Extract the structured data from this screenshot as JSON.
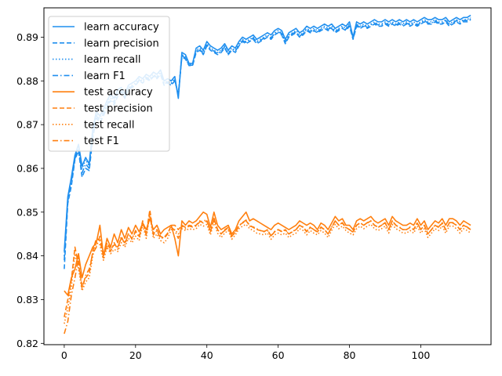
{
  "chart_data": {
    "type": "line",
    "title": "",
    "xlabel": "",
    "ylabel": "",
    "xlim": [
      -5.7,
      119.7
    ],
    "ylim": [
      0.8197,
      0.8967
    ],
    "xticks": [
      0,
      20,
      40,
      60,
      80,
      100
    ],
    "yticks": [
      0.82,
      0.83,
      0.84,
      0.85,
      0.86,
      0.87,
      0.88,
      0.89
    ],
    "grid": false,
    "legend_position": "top-left",
    "colors": {
      "learn": "#1f8fef",
      "test": "#ff7f0e"
    },
    "series_styles": {
      "learn accuracy": "solid",
      "learn precision": "dashed",
      "learn recall": "dotted",
      "learn F1": "dashdot",
      "test accuracy": "solid",
      "test precision": "dashed",
      "test recall": "dotted",
      "test F1": "dashdot"
    },
    "x": [
      0,
      1,
      2,
      3,
      4,
      5,
      6,
      7,
      8,
      9,
      10,
      11,
      12,
      13,
      14,
      15,
      16,
      17,
      18,
      19,
      20,
      21,
      22,
      23,
      24,
      25,
      26,
      27,
      28,
      29,
      30,
      31,
      32,
      33,
      34,
      35,
      36,
      37,
      38,
      39,
      40,
      41,
      42,
      43,
      44,
      45,
      46,
      47,
      48,
      49,
      50,
      51,
      52,
      53,
      54,
      55,
      56,
      57,
      58,
      59,
      60,
      61,
      62,
      63,
      64,
      65,
      66,
      67,
      68,
      69,
      70,
      71,
      72,
      73,
      74,
      75,
      76,
      77,
      78,
      79,
      80,
      81,
      82,
      83,
      84,
      85,
      86,
      87,
      88,
      89,
      90,
      91,
      92,
      93,
      94,
      95,
      96,
      97,
      98,
      99,
      100,
      101,
      102,
      103,
      104,
      105,
      106,
      107,
      108,
      109,
      110,
      111,
      112,
      113,
      114
    ],
    "series": [
      {
        "name": "learn accuracy",
        "values": [
          0.841,
          0.8535,
          0.858,
          0.863,
          0.8655,
          0.8605,
          0.8625,
          0.861,
          0.869,
          0.873,
          0.872,
          0.8735,
          0.8755,
          0.877,
          0.876,
          0.878,
          0.8785,
          0.877,
          0.879,
          0.8795,
          0.88,
          0.881,
          0.8805,
          0.8815,
          0.881,
          0.882,
          0.8815,
          0.8825,
          0.88,
          0.8805,
          0.88,
          0.881,
          0.876,
          0.8865,
          0.886,
          0.884,
          0.884,
          0.8875,
          0.888,
          0.887,
          0.889,
          0.888,
          0.8875,
          0.887,
          0.8875,
          0.8885,
          0.887,
          0.888,
          0.8875,
          0.889,
          0.89,
          0.8895,
          0.89,
          0.8905,
          0.8895,
          0.89,
          0.8905,
          0.891,
          0.8905,
          0.8915,
          0.892,
          0.8915,
          0.8895,
          0.891,
          0.8915,
          0.892,
          0.891,
          0.8915,
          0.8925,
          0.892,
          0.8925,
          0.892,
          0.8925,
          0.893,
          0.8925,
          0.893,
          0.892,
          0.8925,
          0.893,
          0.8925,
          0.8935,
          0.89,
          0.8935,
          0.893,
          0.8935,
          0.893,
          0.8935,
          0.894,
          0.8935,
          0.8935,
          0.894,
          0.8935,
          0.894,
          0.8935,
          0.894,
          0.8935,
          0.894,
          0.8935,
          0.894,
          0.8935,
          0.894,
          0.8945,
          0.894,
          0.894,
          0.8945,
          0.894,
          0.894,
          0.8945,
          0.8935,
          0.894,
          0.8945,
          0.894,
          0.8945,
          0.8945,
          0.895
        ]
      },
      {
        "name": "learn precision",
        "values": [
          0.837,
          0.852,
          0.856,
          0.862,
          0.864,
          0.858,
          0.86,
          0.8595,
          0.867,
          0.8715,
          0.8705,
          0.872,
          0.874,
          0.8755,
          0.8745,
          0.8765,
          0.8775,
          0.876,
          0.878,
          0.8785,
          0.879,
          0.88,
          0.8795,
          0.8805,
          0.88,
          0.881,
          0.8805,
          0.8815,
          0.879,
          0.8795,
          0.879,
          0.88,
          0.877,
          0.8855,
          0.885,
          0.8835,
          0.8835,
          0.8865,
          0.887,
          0.886,
          0.888,
          0.887,
          0.8865,
          0.886,
          0.8865,
          0.8875,
          0.886,
          0.887,
          0.8865,
          0.888,
          0.889,
          0.8885,
          0.889,
          0.8895,
          0.8885,
          0.889,
          0.8895,
          0.89,
          0.8895,
          0.8905,
          0.891,
          0.8905,
          0.8885,
          0.89,
          0.8905,
          0.891,
          0.89,
          0.8905,
          0.8915,
          0.891,
          0.8915,
          0.891,
          0.8915,
          0.892,
          0.8915,
          0.892,
          0.891,
          0.8915,
          0.892,
          0.8915,
          0.8925,
          0.8895,
          0.8925,
          0.892,
          0.8925,
          0.892,
          0.8925,
          0.893,
          0.8925,
          0.8925,
          0.893,
          0.8925,
          0.893,
          0.8925,
          0.893,
          0.8925,
          0.893,
          0.8925,
          0.893,
          0.8925,
          0.893,
          0.8935,
          0.893,
          0.893,
          0.8935,
          0.893,
          0.893,
          0.8935,
          0.8925,
          0.893,
          0.8935,
          0.893,
          0.8935,
          0.8935,
          0.894
        ]
      },
      {
        "name": "learn recall",
        "values": [
          0.84,
          0.853,
          0.8575,
          0.8625,
          0.865,
          0.86,
          0.862,
          0.8605,
          0.8685,
          0.8725,
          0.8715,
          0.873,
          0.875,
          0.8765,
          0.8755,
          0.8775,
          0.878,
          0.8765,
          0.8785,
          0.879,
          0.8795,
          0.8805,
          0.88,
          0.881,
          0.8805,
          0.8815,
          0.881,
          0.882,
          0.8795,
          0.88,
          0.8795,
          0.8805,
          0.8765,
          0.886,
          0.8855,
          0.8838,
          0.8838,
          0.887,
          0.8875,
          0.8865,
          0.8885,
          0.8875,
          0.887,
          0.8865,
          0.887,
          0.888,
          0.8865,
          0.8875,
          0.887,
          0.8885,
          0.8895,
          0.889,
          0.8895,
          0.89,
          0.889,
          0.8895,
          0.89,
          0.8905,
          0.89,
          0.891,
          0.8915,
          0.891,
          0.889,
          0.8905,
          0.891,
          0.8915,
          0.8905,
          0.891,
          0.892,
          0.8915,
          0.892,
          0.8915,
          0.892,
          0.8925,
          0.892,
          0.8925,
          0.8915,
          0.892,
          0.8925,
          0.892,
          0.893,
          0.8898,
          0.893,
          0.8925,
          0.893,
          0.8925,
          0.893,
          0.8935,
          0.893,
          0.893,
          0.8935,
          0.893,
          0.8935,
          0.893,
          0.8935,
          0.893,
          0.8935,
          0.893,
          0.8935,
          0.893,
          0.8935,
          0.894,
          0.8935,
          0.8935,
          0.894,
          0.8935,
          0.8935,
          0.894,
          0.893,
          0.8935,
          0.894,
          0.8935,
          0.894,
          0.894,
          0.8945
        ]
      },
      {
        "name": "learn F1",
        "values": [
          0.839,
          0.8525,
          0.857,
          0.8622,
          0.8645,
          0.859,
          0.861,
          0.86,
          0.8678,
          0.872,
          0.871,
          0.8725,
          0.8745,
          0.876,
          0.875,
          0.877,
          0.8778,
          0.8762,
          0.8782,
          0.8788,
          0.8792,
          0.8802,
          0.8798,
          0.8808,
          0.8802,
          0.8812,
          0.8808,
          0.8818,
          0.8792,
          0.8798,
          0.8792,
          0.8802,
          0.8768,
          0.8858,
          0.8852,
          0.8836,
          0.8836,
          0.8868,
          0.8872,
          0.8862,
          0.8882,
          0.8872,
          0.8868,
          0.8862,
          0.8868,
          0.8878,
          0.8862,
          0.8872,
          0.8868,
          0.8882,
          0.8892,
          0.8888,
          0.8892,
          0.8898,
          0.8888,
          0.8892,
          0.8898,
          0.8902,
          0.8898,
          0.8908,
          0.8912,
          0.8908,
          0.8888,
          0.8902,
          0.8908,
          0.8912,
          0.8902,
          0.8908,
          0.8918,
          0.8912,
          0.8918,
          0.8912,
          0.8918,
          0.8922,
          0.8918,
          0.8922,
          0.8912,
          0.8918,
          0.8922,
          0.8918,
          0.8928,
          0.8896,
          0.8928,
          0.8922,
          0.8928,
          0.8922,
          0.8928,
          0.8932,
          0.8928,
          0.8928,
          0.8932,
          0.8928,
          0.8932,
          0.8928,
          0.8932,
          0.8928,
          0.8932,
          0.8928,
          0.8932,
          0.8928,
          0.8932,
          0.8938,
          0.8932,
          0.8932,
          0.8938,
          0.8932,
          0.8932,
          0.8938,
          0.8928,
          0.8932,
          0.8938,
          0.8932,
          0.8938,
          0.8938,
          0.8942
        ]
      },
      {
        "name": "test accuracy",
        "values": [
          0.832,
          0.831,
          0.835,
          0.837,
          0.8405,
          0.835,
          0.838,
          0.84,
          0.842,
          0.843,
          0.847,
          0.84,
          0.844,
          0.842,
          0.845,
          0.843,
          0.846,
          0.844,
          0.8465,
          0.845,
          0.847,
          0.8455,
          0.8475,
          0.846,
          0.8485,
          0.846,
          0.847,
          0.845,
          0.846,
          0.8465,
          0.847,
          0.844,
          0.84,
          0.848,
          0.847,
          0.848,
          0.8475,
          0.848,
          0.849,
          0.85,
          0.8495,
          0.8465,
          0.85,
          0.847,
          0.846,
          0.8465,
          0.847,
          0.845,
          0.846,
          0.848,
          0.849,
          0.85,
          0.848,
          0.8485,
          0.848,
          0.8475,
          0.847,
          0.8465,
          0.846,
          0.847,
          0.8475,
          0.847,
          0.8465,
          0.846,
          0.8465,
          0.847,
          0.848,
          0.8475,
          0.847,
          0.8475,
          0.847,
          0.846,
          0.8475,
          0.847,
          0.846,
          0.8475,
          0.849,
          0.848,
          0.8485,
          0.847,
          0.847,
          0.846,
          0.848,
          0.8485,
          0.848,
          0.8485,
          0.849,
          0.848,
          0.8475,
          0.848,
          0.8485,
          0.847,
          0.849,
          0.848,
          0.8475,
          0.847,
          0.847,
          0.8475,
          0.847,
          0.8485,
          0.847,
          0.848,
          0.846,
          0.847,
          0.848,
          0.8475,
          0.8485,
          0.847,
          0.8485,
          0.8485,
          0.848,
          0.847,
          0.848,
          0.8475,
          0.847
        ]
      },
      {
        "name": "test precision",
        "values": [
          0.826,
          0.83,
          0.8345,
          0.842,
          0.838,
          0.833,
          0.835,
          0.836,
          0.841,
          0.844,
          0.8435,
          0.84,
          0.843,
          0.8415,
          0.8425,
          0.842,
          0.844,
          0.843,
          0.845,
          0.844,
          0.8455,
          0.8445,
          0.848,
          0.845,
          0.8505,
          0.845,
          0.846,
          0.8445,
          0.844,
          0.845,
          0.847,
          0.847,
          0.846,
          0.847,
          0.8465,
          0.847,
          0.8468,
          0.847,
          0.848,
          0.8475,
          0.848,
          0.8455,
          0.8485,
          0.846,
          0.845,
          0.846,
          0.8465,
          0.8445,
          0.8455,
          0.847,
          0.8475,
          0.848,
          0.847,
          0.8465,
          0.846,
          0.8458,
          0.8455,
          0.846,
          0.8445,
          0.8455,
          0.846,
          0.8455,
          0.846,
          0.845,
          0.8455,
          0.846,
          0.847,
          0.8465,
          0.8455,
          0.8465,
          0.846,
          0.8455,
          0.8465,
          0.846,
          0.845,
          0.8465,
          0.848,
          0.847,
          0.8475,
          0.8465,
          0.846,
          0.8455,
          0.847,
          0.8475,
          0.847,
          0.8475,
          0.848,
          0.847,
          0.8465,
          0.847,
          0.8475,
          0.846,
          0.848,
          0.847,
          0.8465,
          0.846,
          0.846,
          0.8465,
          0.846,
          0.8475,
          0.846,
          0.847,
          0.845,
          0.846,
          0.847,
          0.8465,
          0.8475,
          0.846,
          0.8475,
          0.8475,
          0.847,
          0.846,
          0.847,
          0.8465,
          0.846
        ]
      },
      {
        "name": "test recall",
        "values": [
          0.8245,
          0.828,
          0.833,
          0.8405,
          0.837,
          0.832,
          0.834,
          0.835,
          0.84,
          0.843,
          0.8425,
          0.839,
          0.842,
          0.8405,
          0.8415,
          0.841,
          0.843,
          0.842,
          0.844,
          0.843,
          0.8445,
          0.8435,
          0.847,
          0.844,
          0.8495,
          0.844,
          0.845,
          0.8435,
          0.843,
          0.844,
          0.846,
          0.846,
          0.845,
          0.8462,
          0.8458,
          0.8462,
          0.846,
          0.8462,
          0.8472,
          0.8468,
          0.8472,
          0.8448,
          0.8478,
          0.8452,
          0.8442,
          0.8452,
          0.8458,
          0.8438,
          0.8448,
          0.8462,
          0.8468,
          0.8472,
          0.8462,
          0.8458,
          0.8452,
          0.845,
          0.8448,
          0.8452,
          0.8438,
          0.8448,
          0.8452,
          0.8448,
          0.8452,
          0.8442,
          0.8448,
          0.8452,
          0.8462,
          0.8458,
          0.8448,
          0.8458,
          0.8452,
          0.8448,
          0.8458,
          0.8452,
          0.8442,
          0.8458,
          0.8472,
          0.8462,
          0.8468,
          0.8458,
          0.8452,
          0.8448,
          0.8462,
          0.8468,
          0.8462,
          0.8468,
          0.8472,
          0.8462,
          0.8458,
          0.8462,
          0.8468,
          0.8452,
          0.8472,
          0.8462,
          0.8458,
          0.8452,
          0.8452,
          0.8458,
          0.8452,
          0.8468,
          0.8452,
          0.8462,
          0.8442,
          0.8452,
          0.8462,
          0.8458,
          0.8468,
          0.8452,
          0.8468,
          0.8468,
          0.8462,
          0.8452,
          0.8462,
          0.8458,
          0.8452
        ]
      },
      {
        "name": "test F1",
        "values": [
          0.8222,
          0.825,
          0.831,
          0.835,
          0.8395,
          0.8325,
          0.8355,
          0.837,
          0.8405,
          0.842,
          0.8445,
          0.8395,
          0.8425,
          0.841,
          0.843,
          0.8415,
          0.8445,
          0.8425,
          0.8452,
          0.8438,
          0.8458,
          0.8442,
          0.8476,
          0.8448,
          0.8498,
          0.8448,
          0.8458,
          0.844,
          0.8442,
          0.8452,
          0.8466,
          0.8458,
          0.844,
          0.8468,
          0.8462,
          0.8468,
          0.8466,
          0.8468,
          0.8478,
          0.848,
          0.8482,
          0.8455,
          0.8486,
          0.846,
          0.845,
          0.8458,
          0.8464,
          0.8444,
          0.8454,
          0.8468,
          0.8476,
          0.8482,
          0.8468,
          0.8466,
          0.8462,
          0.8458,
          0.8456,
          0.8458,
          0.8446,
          0.8456,
          0.846,
          0.8456,
          0.8458,
          0.845,
          0.8456,
          0.846,
          0.847,
          0.8466,
          0.8456,
          0.8466,
          0.846,
          0.8454,
          0.8466,
          0.846,
          0.845,
          0.8466,
          0.848,
          0.847,
          0.8476,
          0.8464,
          0.846,
          0.8454,
          0.847,
          0.8476,
          0.847,
          0.8476,
          0.848,
          0.847,
          0.8466,
          0.847,
          0.8476,
          0.846,
          0.848,
          0.847,
          0.8466,
          0.846,
          0.846,
          0.8466,
          0.846,
          0.8476,
          0.846,
          0.847,
          0.845,
          0.846,
          0.847,
          0.8466,
          0.8476,
          0.846,
          0.8476,
          0.8476,
          0.847,
          0.846,
          0.847,
          0.8466,
          0.846
        ]
      }
    ],
    "legend": [
      "learn accuracy",
      "learn precision",
      "learn recall",
      "learn F1",
      "test accuracy",
      "test precision",
      "test recall",
      "test F1"
    ]
  }
}
